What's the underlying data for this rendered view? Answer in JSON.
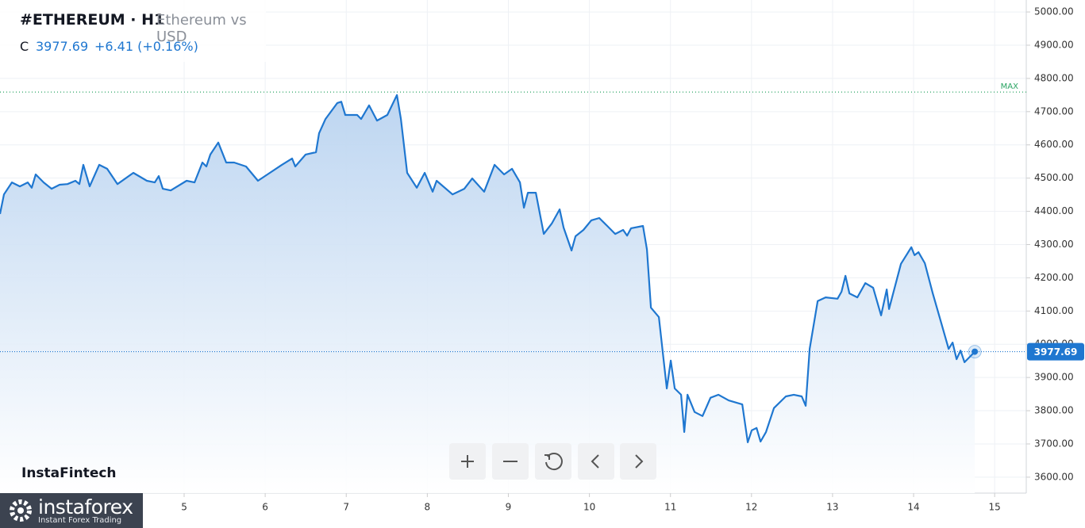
{
  "header": {
    "title": "#ETHEREUM · H1",
    "subtitle": "Ethereum vs USD",
    "close_prefix": "C",
    "close": 3977.69,
    "change": "+6.41 (+0.16%)"
  },
  "chart_data": {
    "type": "line",
    "color": "#1f77d0",
    "grid": true,
    "xlim": [
      2.728,
      15.39
    ],
    "ylim": [
      3552,
      5036
    ],
    "xticks": [
      5,
      6,
      7,
      8,
      9,
      10,
      11,
      12,
      13,
      14,
      15
    ],
    "yticks": [
      {
        "value": 3600,
        "label": "3600.00"
      },
      {
        "value": 3700,
        "label": "3700.00"
      },
      {
        "value": 3800,
        "label": "3800.00"
      },
      {
        "value": 3900,
        "label": "3900.00"
      },
      {
        "value": 4000,
        "label": "4000.00"
      },
      {
        "value": 4100,
        "label": "4100.00"
      },
      {
        "value": 4200,
        "label": "4200.00"
      },
      {
        "value": 4300,
        "label": "4300.00"
      },
      {
        "value": 4400,
        "label": "4400.00"
      },
      {
        "value": 4500,
        "label": "4500.00"
      },
      {
        "value": 4600,
        "label": "4600.00"
      },
      {
        "value": 4700,
        "label": "4700.00"
      },
      {
        "value": 4800,
        "label": "4800.00"
      },
      {
        "value": 4900,
        "label": "4900.00"
      },
      {
        "value": 5000,
        "label": "5000.00"
      }
    ],
    "max_line": {
      "value": 4759,
      "label": "MAX"
    },
    "last_price": 3977.69,
    "x": [
      2.728,
      2.777,
      2.875,
      2.973,
      3.071,
      3.12,
      3.169,
      3.267,
      3.365,
      3.463,
      3.56,
      3.658,
      3.707,
      3.756,
      3.835,
      3.952,
      4.05,
      4.177,
      4.373,
      4.54,
      4.638,
      4.687,
      4.736,
      4.834,
      5.03,
      5.128,
      5.225,
      5.274,
      5.323,
      5.421,
      5.519,
      5.617,
      5.764,
      5.911,
      6.058,
      6.205,
      6.332,
      6.371,
      6.499,
      6.626,
      6.665,
      6.744,
      6.89,
      6.939,
      6.988,
      7.135,
      7.184,
      7.282,
      7.38,
      7.507,
      7.625,
      7.674,
      7.752,
      7.87,
      7.968,
      8.066,
      8.115,
      8.311,
      8.457,
      8.555,
      8.702,
      8.83,
      8.947,
      9.045,
      9.143,
      9.192,
      9.241,
      9.339,
      9.437,
      9.535,
      9.633,
      9.682,
      9.78,
      9.829,
      9.927,
      10.024,
      10.122,
      10.22,
      10.318,
      10.416,
      10.465,
      10.514,
      10.661,
      10.71,
      10.759,
      10.857,
      10.955,
      11.004,
      11.053,
      11.131,
      11.17,
      11.21,
      11.298,
      11.396,
      11.494,
      11.592,
      11.719,
      11.886,
      11.954,
      12.003,
      12.062,
      12.111,
      12.179,
      12.277,
      12.424,
      12.522,
      12.62,
      12.669,
      12.718,
      12.816,
      12.914,
      13.061,
      13.11,
      13.159,
      13.208,
      13.306,
      13.404,
      13.501,
      13.599,
      13.668,
      13.697,
      13.844,
      13.972,
      14.011,
      14.06,
      14.138,
      14.236,
      14.334,
      14.432,
      14.481,
      14.53,
      14.579,
      14.628,
      14.755
    ],
    "values": [
      4392,
      4451,
      4487,
      4475,
      4487,
      4471,
      4511,
      4487,
      4468,
      4480,
      4482,
      4492,
      4482,
      4540,
      4475,
      4540,
      4528,
      4482,
      4516,
      4492,
      4487,
      4506,
      4468,
      4463,
      4492,
      4487,
      4547,
      4535,
      4571,
      4607,
      4547,
      4547,
      4535,
      4492,
      4516,
      4540,
      4559,
      4535,
      4571,
      4578,
      4635,
      4678,
      4726,
      4730,
      4690,
      4690,
      4678,
      4719,
      4673,
      4690,
      4750,
      4678,
      4516,
      4471,
      4516,
      4459,
      4492,
      4451,
      4468,
      4499,
      4459,
      4540,
      4511,
      4528,
      4487,
      4411,
      4456,
      4456,
      4332,
      4363,
      4406,
      4351,
      4282,
      4325,
      4344,
      4373,
      4380,
      4356,
      4332,
      4344,
      4327,
      4349,
      4356,
      4285,
      4110,
      4082,
      3867,
      3951,
      3867,
      3848,
      3736,
      3848,
      3796,
      3784,
      3839,
      3848,
      3831,
      3819,
      3705,
      3741,
      3748,
      3707,
      3736,
      3808,
      3843,
      3848,
      3843,
      3815,
      3986,
      4130,
      4141,
      4137,
      4158,
      4206,
      4153,
      4141,
      4184,
      4170,
      4087,
      4165,
      4106,
      4242,
      4292,
      4268,
      4277,
      4244,
      4153,
      4070,
      3986,
      4005,
      3955,
      3981,
      3946,
      3977.69
    ]
  },
  "branding": {
    "watermark": "InstaFintech",
    "logo": "instaforex",
    "logo_tagline": "Instant Forex Trading"
  }
}
